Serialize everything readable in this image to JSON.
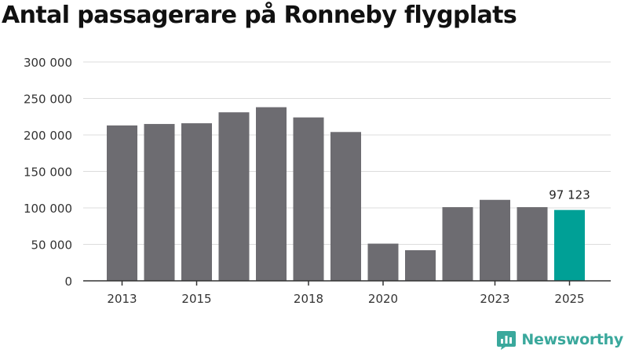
{
  "chart_data": {
    "type": "bar",
    "title": "Antal passagerare på Ronneby flygplats",
    "xlabel": "",
    "ylabel": "",
    "categories": [
      "2013",
      "2014",
      "2015",
      "2016",
      "2017",
      "2018",
      "2019",
      "2020",
      "2021",
      "2022",
      "2023",
      "2024",
      "2025"
    ],
    "x_tick_labels": [
      "2013",
      "2015",
      "2018",
      "2020",
      "2023",
      "2025"
    ],
    "values": [
      213000,
      215000,
      216000,
      231000,
      238000,
      224000,
      204000,
      51000,
      42000,
      101000,
      111000,
      101000,
      97123
    ],
    "ylim": [
      0,
      300000
    ],
    "y_ticks": [
      0,
      50000,
      100000,
      150000,
      200000,
      250000,
      300000
    ],
    "y_tick_labels": [
      "0",
      "50 000",
      "100 000",
      "150 000",
      "200 000",
      "250 000",
      "300 000"
    ],
    "grid": true,
    "bar_color": "#6d6c71",
    "highlight_color": "#00a096",
    "highlight_index": 12,
    "data_labels": [
      {
        "index": 12,
        "text": "97 123"
      }
    ]
  },
  "brand": {
    "name": "Newsworthy",
    "icon": "newsworthy-logo-icon",
    "color": "#3aa89c"
  }
}
